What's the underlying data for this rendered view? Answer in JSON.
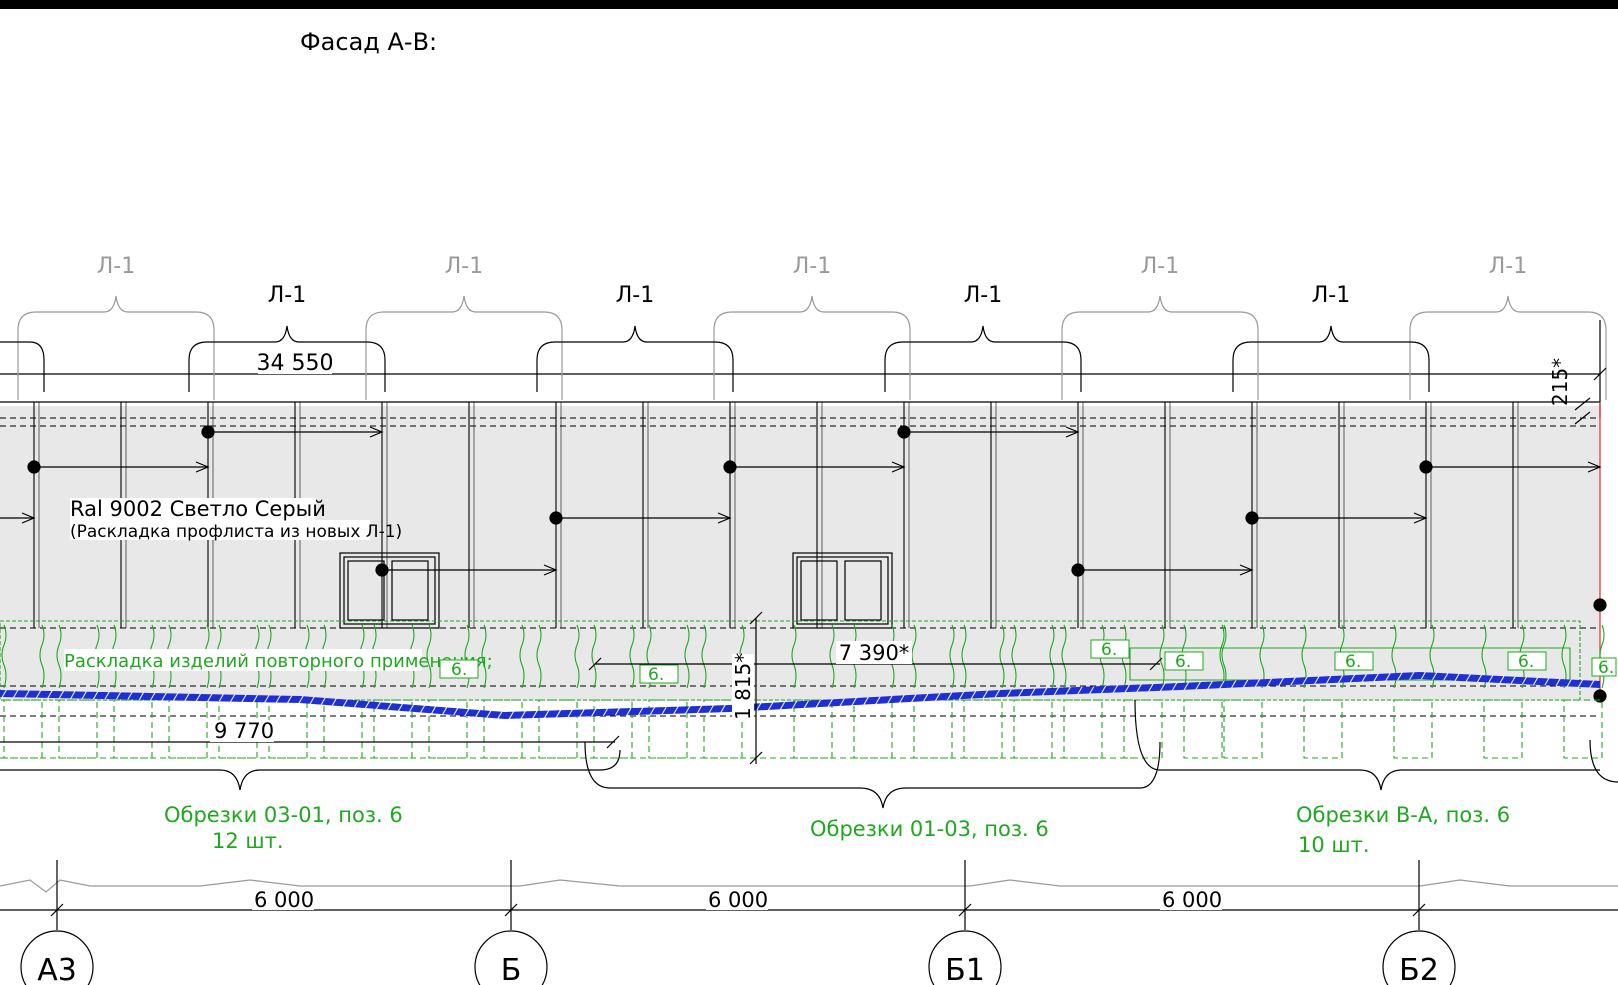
{
  "drawing": {
    "title": "Фасад А-В:",
    "colors": {
      "frame": "#000000",
      "panel_fill": "#e8e8e8",
      "reuse_green": "#1fa81f",
      "ground_blue": "#1f2fd6",
      "bracket_grey": "#9a9a9a",
      "edge_red": "#e03030"
    },
    "sheet_labels_upper": [
      "Л-1",
      "Л-1",
      "Л-1",
      "Л-1",
      "Л-1"
    ],
    "sheet_labels_lower": [
      "Л-1",
      "Л-1",
      "Л-1",
      "Л-1"
    ],
    "dim_overall_top": "34 550",
    "dim_top_right_vertical": "215*",
    "material_note_line1": "Ral 9002 Светло Серый",
    "material_note_line2": "(Раскладка профлиста из новых Л-1)",
    "reuse_note": "Раскладка изделий повторного применения;",
    "position_tag": "6.",
    "dim_mid": "7 390*",
    "dim_left_bottom": "9 770",
    "dim_vertical_mid": "1 815*",
    "cut_groups": [
      {
        "line1": "Обрезки 03-01, поз. 6",
        "line2": "12 шт."
      },
      {
        "line1": "Обрезки 01-03, поз. 6",
        "line2": ""
      },
      {
        "line1": "Обрезки В-А, поз. 6",
        "line2": "10 шт."
      }
    ],
    "axis_spans": [
      "6 000",
      "6 000",
      "6 000"
    ],
    "axes": [
      "А3",
      "Б",
      "Б1",
      "Б2"
    ]
  }
}
